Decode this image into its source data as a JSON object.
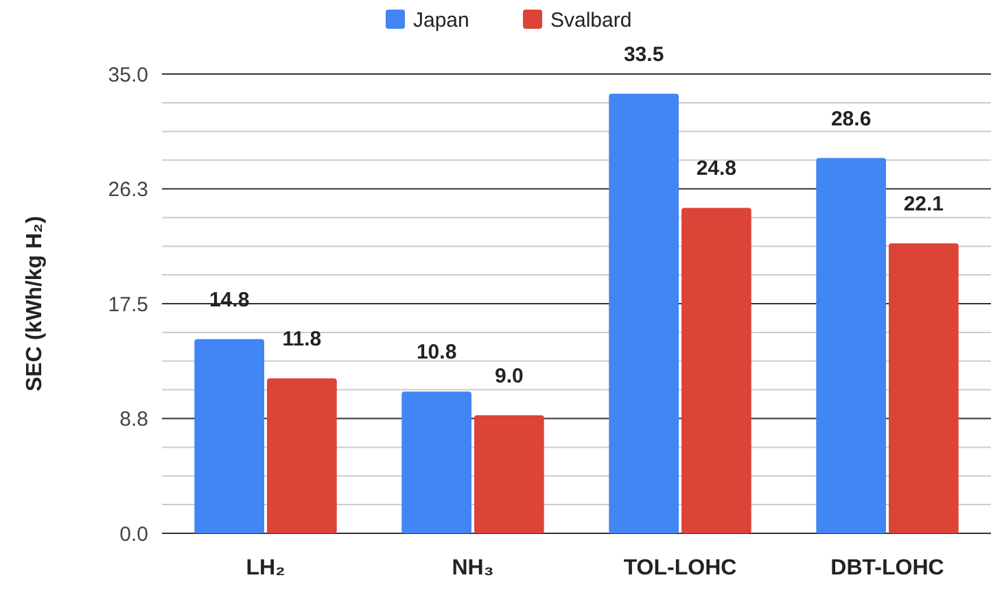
{
  "chart_data": {
    "type": "bar",
    "ylabel": "SEC (kWh/kg H₂)",
    "categories": [
      "LH₂",
      "NH₃",
      "TOL-LOHC",
      "DBT-LOHC"
    ],
    "series": [
      {
        "name": "Japan",
        "color": "#4285f4",
        "values": [
          14.8,
          10.8,
          33.5,
          28.6
        ],
        "value_labels": [
          "14.8",
          "10.8",
          "33.5",
          "28.6"
        ]
      },
      {
        "name": "Svalbard",
        "color": "#db4437",
        "values": [
          11.8,
          9.0,
          24.8,
          22.1
        ],
        "value_labels": [
          "11.8",
          "9.0",
          "24.8",
          "22.1"
        ]
      }
    ],
    "ylim": [
      0,
      35
    ],
    "yticks": [
      {
        "value": 0,
        "label": "0.0"
      },
      {
        "value": 2.19,
        "label": null
      },
      {
        "value": 4.38,
        "label": null
      },
      {
        "value": 6.56,
        "label": null
      },
      {
        "value": 8.75,
        "label": "8.8"
      },
      {
        "value": 10.94,
        "label": null
      },
      {
        "value": 13.13,
        "label": null
      },
      {
        "value": 15.31,
        "label": null
      },
      {
        "value": 17.5,
        "label": "17.5"
      },
      {
        "value": 19.69,
        "label": null
      },
      {
        "value": 21.88,
        "label": null
      },
      {
        "value": 24.06,
        "label": null
      },
      {
        "value": 26.25,
        "label": "26.3"
      },
      {
        "value": 28.44,
        "label": null
      },
      {
        "value": 30.63,
        "label": null
      },
      {
        "value": 32.81,
        "label": null
      },
      {
        "value": 35,
        "label": "35.0"
      }
    ],
    "grid": "y",
    "legend": "top"
  }
}
